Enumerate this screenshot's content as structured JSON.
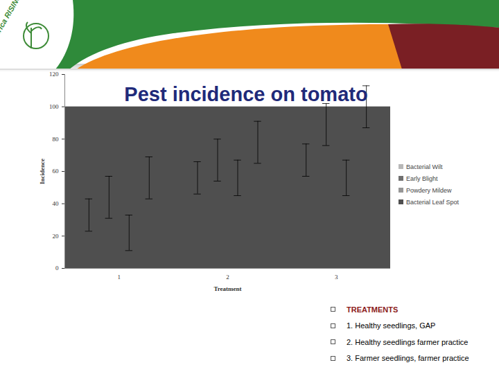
{
  "chart_data": {
    "type": "bar",
    "title": "Pest incidence on tomato",
    "header_logo": "Africa RISING",
    "x_label": "Treatment",
    "y_label": "Incidence",
    "categories": [
      "1",
      "2",
      "3"
    ],
    "series": [
      {
        "name": "Bacterial Wilt",
        "color": "#b8b8b8",
        "values": [
          33,
          56,
          67
        ],
        "errors": [
          10,
          10,
          10
        ]
      },
      {
        "name": "Early Blight",
        "color": "#6f6f6f",
        "values": [
          44,
          67,
          89
        ],
        "errors": [
          13,
          13,
          13
        ]
      },
      {
        "name": "Powdery Mildew",
        "color": "#969696",
        "values": [
          22,
          56,
          56
        ],
        "errors": [
          11,
          11,
          11
        ]
      },
      {
        "name": "Bacterial Leaf Spot",
        "color": "#4f4f4f",
        "values": [
          56,
          78,
          100
        ],
        "errors": [
          13,
          13,
          13
        ]
      }
    ],
    "ylim": [
      0,
      120
    ],
    "yticks": [
      0,
      20,
      40,
      60,
      80,
      100,
      120
    ],
    "grid": false,
    "legend": "right",
    "annotations": [
      "TREATMENTS",
      "1. Healthy seedlings, GAP",
      "2. Healthy seedlings farmer practice",
      "3. Farmer seedlings, farmer practice"
    ]
  }
}
